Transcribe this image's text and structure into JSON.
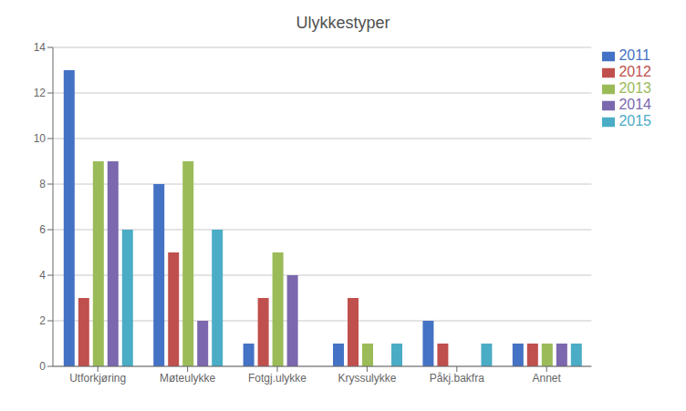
{
  "chart_data": {
    "type": "bar",
    "title": "Ulykkestyper",
    "categories": [
      "Utforkjøring",
      "Møteulykke",
      "Fotgj.ulykke",
      "Kryssulykke",
      "Påkj.bakfra",
      "Annet"
    ],
    "series": [
      {
        "name": "2011",
        "color": "#4472C4",
        "values": [
          13,
          8,
          1,
          1,
          2,
          1
        ]
      },
      {
        "name": "2012",
        "color": "#C0504D",
        "values": [
          3,
          5,
          3,
          3,
          1,
          1
        ]
      },
      {
        "name": "2013",
        "color": "#9BBB59",
        "values": [
          9,
          9,
          5,
          1,
          0,
          1
        ]
      },
      {
        "name": "2014",
        "color": "#7B68AE",
        "values": [
          9,
          2,
          4,
          0,
          0,
          1
        ]
      },
      {
        "name": "2015",
        "color": "#4BACC6",
        "values": [
          6,
          6,
          0,
          1,
          1,
          1
        ]
      }
    ],
    "ylim": [
      0,
      14
    ],
    "yticks": [
      0,
      2,
      4,
      6,
      8,
      10,
      12,
      14
    ],
    "grid": true,
    "legend": "upper right"
  }
}
